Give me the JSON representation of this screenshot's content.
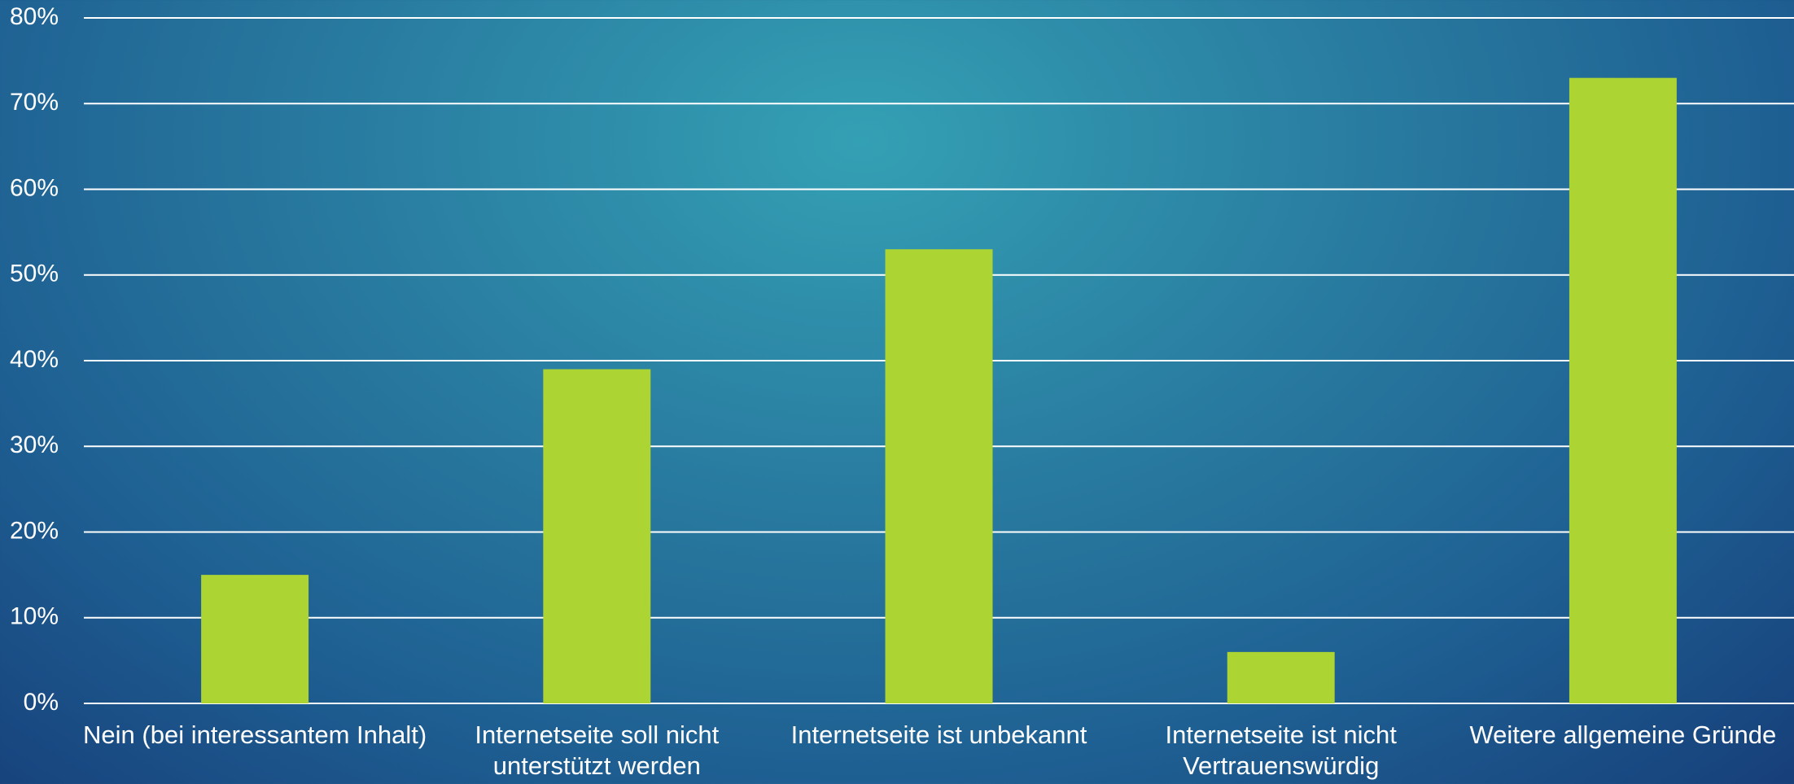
{
  "chart_data": {
    "type": "bar",
    "categories": [
      "Nein (bei interessantem Inhalt)",
      "Internetseite soll nicht unterstützt werden",
      "Internetseite ist unbekannt",
      "Internetseite ist nicht Vertrauenswürdig",
      "Weitere allgemeine Gründe"
    ],
    "values": [
      15,
      39,
      53,
      6,
      73
    ],
    "color": "#acd433",
    "ylim": [
      0,
      80
    ],
    "yticks": [
      {
        "value": 0,
        "label": "0%"
      },
      {
        "value": 10,
        "label": "10%"
      },
      {
        "value": 20,
        "label": "20%"
      },
      {
        "value": 30,
        "label": "30%"
      },
      {
        "value": 40,
        "label": "40%"
      },
      {
        "value": 50,
        "label": "50%"
      },
      {
        "value": 60,
        "label": "60%"
      },
      {
        "value": 70,
        "label": "70%"
      },
      {
        "value": 80,
        "label": "80%"
      }
    ],
    "grid": true
  }
}
